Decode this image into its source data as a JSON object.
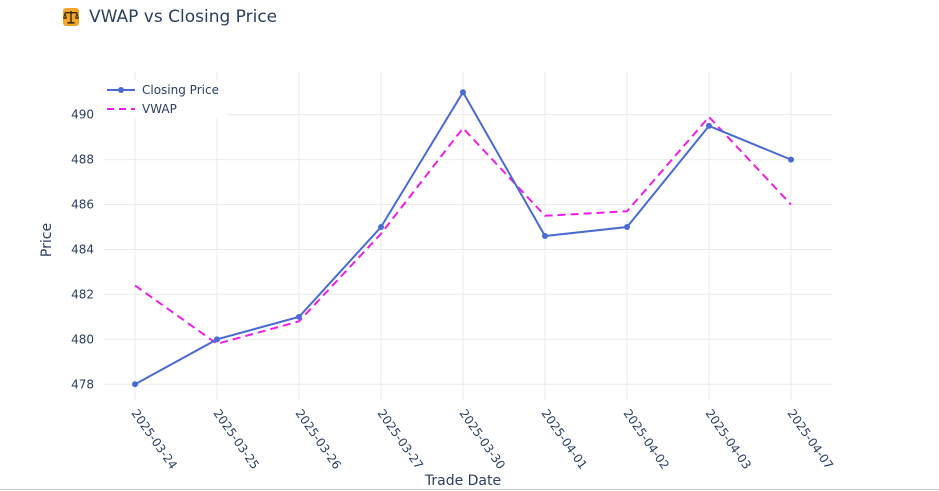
{
  "header": {
    "title": "VWAP vs Closing Price",
    "icon": "balance-scale-icon"
  },
  "colors": {
    "closing": "#4a6bd2",
    "vwap": "#ee1ee6",
    "grid": "#ebebeb",
    "text": "#2a3f5f"
  },
  "chart_data": {
    "type": "line",
    "title": "VWAP vs Closing Price",
    "xlabel": "Trade Date",
    "ylabel": "Price",
    "categories": [
      "2025-03-24",
      "2025-03-25",
      "2025-03-26",
      "2025-03-27",
      "2025-03-30",
      "2025-04-01",
      "2025-04-02",
      "2025-04-03",
      "2025-04-07"
    ],
    "series": [
      {
        "name": "Closing Price",
        "style": "solid-markers",
        "values": [
          478.0,
          480.0,
          481.0,
          485.0,
          491.0,
          484.6,
          485.0,
          489.5,
          488.0
        ]
      },
      {
        "name": "VWAP",
        "style": "dash",
        "values": [
          482.4,
          479.8,
          480.8,
          484.7,
          489.4,
          485.5,
          485.7,
          489.9,
          486.0
        ]
      }
    ],
    "yticks": [
      478,
      480,
      482,
      484,
      486,
      488,
      490
    ],
    "ylim": [
      477.3,
      491.9
    ],
    "grid": true,
    "legend_position": "top-left"
  }
}
